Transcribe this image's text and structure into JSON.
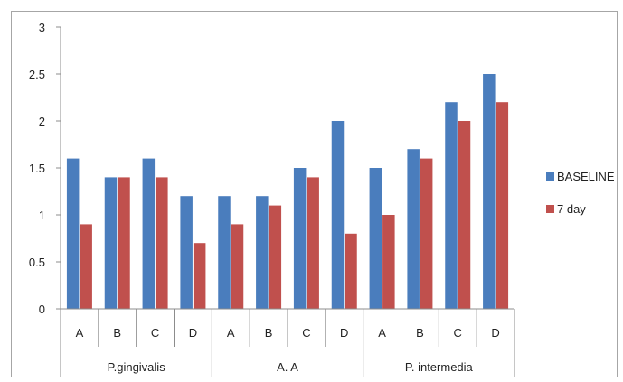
{
  "chart_data": {
    "type": "bar",
    "title": "",
    "xlabel": "",
    "ylabel": "",
    "ylim": [
      0,
      3
    ],
    "yticks": [
      "0",
      "0.5",
      "1",
      "1.5",
      "2",
      "2.5",
      "3"
    ],
    "grid": false,
    "legend_position": "right",
    "groups": [
      {
        "label": "P.gingivalis",
        "categories": [
          "A",
          "B",
          "C",
          "D"
        ]
      },
      {
        "label": "A.   A",
        "categories": [
          "A",
          "B",
          "C",
          "D"
        ]
      },
      {
        "label": "P. intermedia",
        "categories": [
          "A",
          "B",
          "C",
          "D"
        ]
      }
    ],
    "series": [
      {
        "name": "BASELINE",
        "color": "#4a7dbd",
        "values": [
          1.6,
          1.4,
          1.6,
          1.2,
          1.2,
          1.2,
          1.5,
          2.0,
          1.5,
          1.7,
          2.2,
          2.5
        ]
      },
      {
        "name": "7 day",
        "color": "#c0504d",
        "values": [
          0.9,
          1.4,
          1.4,
          0.7,
          0.9,
          1.1,
          1.4,
          0.8,
          1.0,
          1.6,
          2.0,
          2.2
        ]
      }
    ]
  }
}
